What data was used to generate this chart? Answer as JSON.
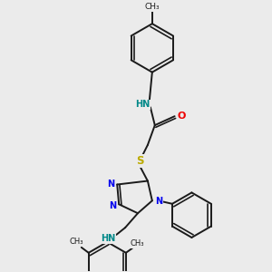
{
  "bg_color": "#ebebeb",
  "bond_color": "#1a1a1a",
  "N_color": "#0000ee",
  "O_color": "#ee0000",
  "S_color": "#bbaa00",
  "NH_color": "#008888",
  "line_width": 1.4,
  "font_size": 7.0,
  "dpi": 100,
  "figsize": [
    3.0,
    3.0
  ],
  "xlim": [
    0,
    300
  ],
  "ylim": [
    0,
    300
  ]
}
